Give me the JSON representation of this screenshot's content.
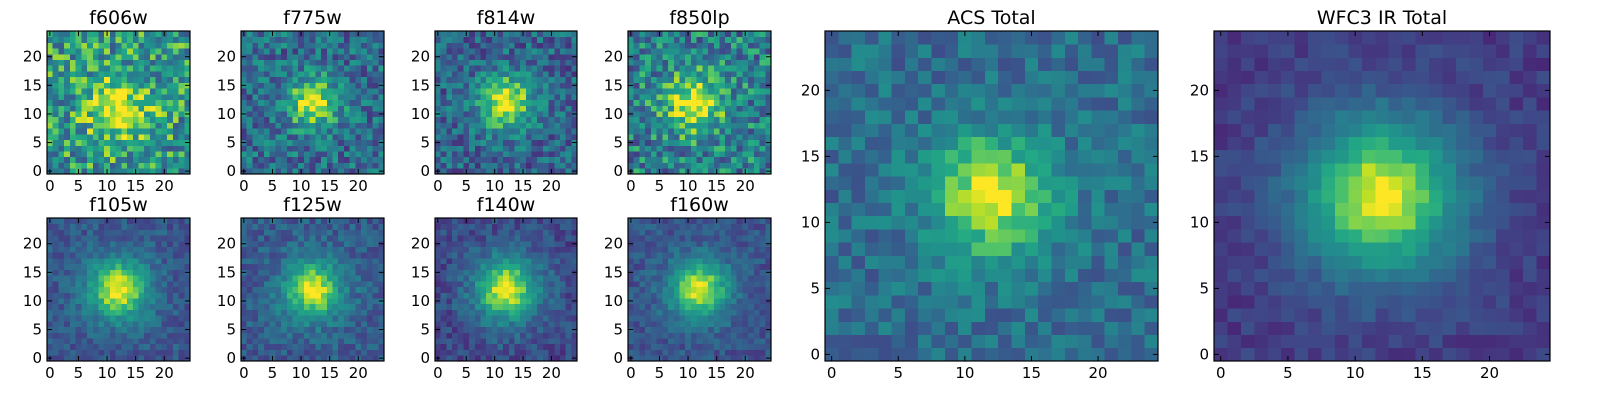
{
  "chart_data": [
    {
      "type": "heatmap",
      "title": "f606w",
      "colormap": "viridis",
      "grid_size": 25,
      "xlim": [
        -0.5,
        24.5
      ],
      "ylim": [
        -0.5,
        24.5
      ],
      "xticks": [
        0,
        5,
        10,
        15,
        20
      ],
      "yticks": [
        0,
        5,
        10,
        15,
        20
      ],
      "peak": [
        12,
        11
      ],
      "peak_value": 1.0,
      "background": 0.62,
      "sigma": 4.0,
      "noise": 0.3,
      "seed": 11
    },
    {
      "type": "heatmap",
      "title": "f775w",
      "colormap": "viridis",
      "grid_size": 25,
      "xlim": [
        -0.5,
        24.5
      ],
      "ylim": [
        -0.5,
        24.5
      ],
      "xticks": [
        0,
        5,
        10,
        15,
        20
      ],
      "yticks": [
        0,
        5,
        10,
        15,
        20
      ],
      "peak": [
        12,
        12
      ],
      "peak_value": 1.0,
      "background": 0.45,
      "sigma": 3.2,
      "noise": 0.26,
      "seed": 23
    },
    {
      "type": "heatmap",
      "title": "f814w",
      "colormap": "viridis",
      "grid_size": 25,
      "xlim": [
        -0.5,
        24.5
      ],
      "ylim": [
        -0.5,
        24.5
      ],
      "xticks": [
        0,
        5,
        10,
        15,
        20
      ],
      "yticks": [
        0,
        5,
        10,
        15,
        20
      ],
      "peak": [
        12,
        12
      ],
      "peak_value": 1.0,
      "background": 0.4,
      "sigma": 3.6,
      "noise": 0.24,
      "seed": 37
    },
    {
      "type": "heatmap",
      "title": "f850lp",
      "colormap": "viridis",
      "grid_size": 25,
      "xlim": [
        -0.5,
        24.5
      ],
      "ylim": [
        -0.5,
        24.5
      ],
      "xticks": [
        0,
        5,
        10,
        15,
        20
      ],
      "yticks": [
        0,
        5,
        10,
        15,
        20
      ],
      "peak": [
        11,
        12
      ],
      "peak_value": 1.0,
      "background": 0.52,
      "sigma": 3.8,
      "noise": 0.3,
      "seed": 41
    },
    {
      "type": "heatmap",
      "title": "f105w",
      "colormap": "viridis",
      "grid_size": 25,
      "xlim": [
        -0.5,
        24.5
      ],
      "ylim": [
        -0.5,
        24.5
      ],
      "xticks": [
        0,
        5,
        10,
        15,
        20
      ],
      "yticks": [
        0,
        5,
        10,
        15,
        20
      ],
      "peak": [
        12,
        12
      ],
      "peak_value": 1.0,
      "background": 0.34,
      "sigma": 4.0,
      "noise": 0.13,
      "seed": 53
    },
    {
      "type": "heatmap",
      "title": "f125w",
      "colormap": "viridis",
      "grid_size": 25,
      "xlim": [
        -0.5,
        24.5
      ],
      "ylim": [
        -0.5,
        24.5
      ],
      "xticks": [
        0,
        5,
        10,
        15,
        20
      ],
      "yticks": [
        0,
        5,
        10,
        15,
        20
      ],
      "peak": [
        12,
        12
      ],
      "peak_value": 1.0,
      "background": 0.36,
      "sigma": 3.8,
      "noise": 0.14,
      "seed": 67
    },
    {
      "type": "heatmap",
      "title": "f140w",
      "colormap": "viridis",
      "grid_size": 25,
      "xlim": [
        -0.5,
        24.5
      ],
      "ylim": [
        -0.5,
        24.5
      ],
      "xticks": [
        0,
        5,
        10,
        15,
        20
      ],
      "yticks": [
        0,
        5,
        10,
        15,
        20
      ],
      "peak": [
        12,
        12
      ],
      "peak_value": 1.0,
      "background": 0.28,
      "sigma": 4.2,
      "noise": 0.14,
      "seed": 79
    },
    {
      "type": "heatmap",
      "title": "f160w",
      "colormap": "viridis",
      "grid_size": 25,
      "xlim": [
        -0.5,
        24.5
      ],
      "ylim": [
        -0.5,
        24.5
      ],
      "xticks": [
        0,
        5,
        10,
        15,
        20
      ],
      "yticks": [
        0,
        5,
        10,
        15,
        20
      ],
      "peak": [
        12,
        12
      ],
      "peak_value": 1.0,
      "background": 0.33,
      "sigma": 3.8,
      "noise": 0.12,
      "seed": 83
    },
    {
      "type": "heatmap",
      "title": "ACS Total",
      "colormap": "viridis",
      "grid_size": 25,
      "xlim": [
        -0.5,
        24.5
      ],
      "ylim": [
        -0.5,
        24.5
      ],
      "xticks": [
        0,
        5,
        10,
        15,
        20
      ],
      "yticks": [
        0,
        5,
        10,
        15,
        20
      ],
      "peak": [
        12,
        12
      ],
      "peak_value": 1.0,
      "background": 0.45,
      "sigma": 3.4,
      "noise": 0.16,
      "seed": 97
    },
    {
      "type": "heatmap",
      "title": "WFC3 IR Total",
      "colormap": "viridis",
      "grid_size": 25,
      "xlim": [
        -0.5,
        24.5
      ],
      "ylim": [
        -0.5,
        24.5
      ],
      "xticks": [
        0,
        5,
        10,
        15,
        20
      ],
      "yticks": [
        0,
        5,
        10,
        15,
        20
      ],
      "peak": [
        12,
        12
      ],
      "peak_value": 1.0,
      "background": 0.22,
      "sigma": 4.4,
      "noise": 0.08,
      "seed": 101
    }
  ]
}
